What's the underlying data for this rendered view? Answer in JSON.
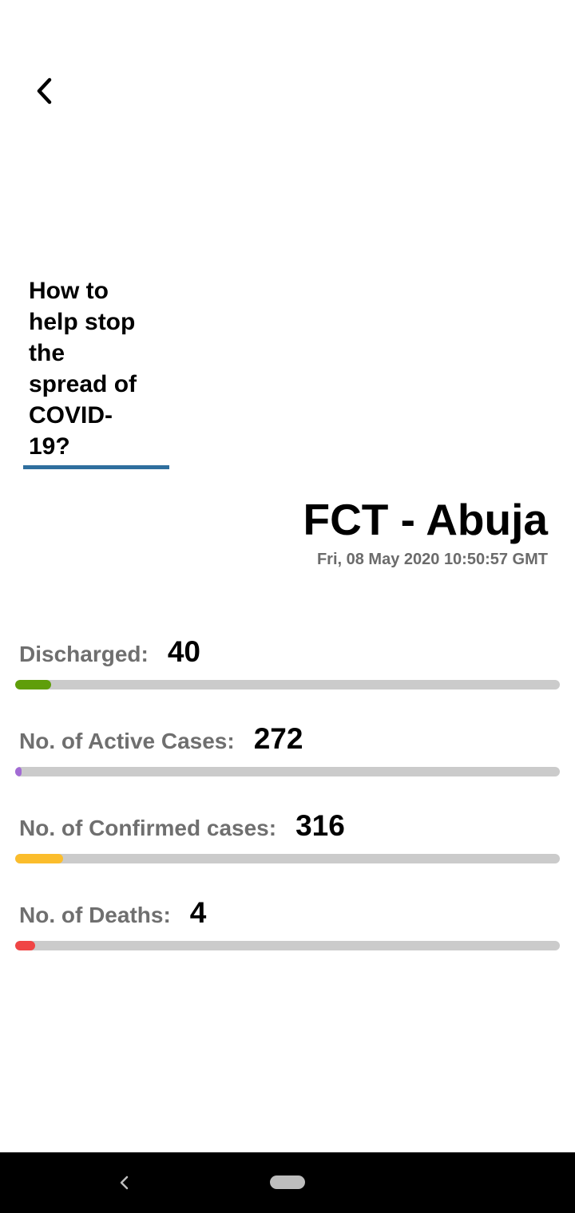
{
  "header": {
    "back_icon": "chevron-left-icon"
  },
  "help_link": {
    "label": "How to help stop the spread of COVID-19?",
    "underline_color": "#2f6f9e"
  },
  "region": {
    "title": "FCT - Abuja",
    "timestamp": "Fri, 08 May 2020 10:50:57 GMT"
  },
  "stats": [
    {
      "label": "Discharged:",
      "value": "40",
      "color": "#5f9e0a",
      "progress": 0.066
    },
    {
      "label": "No. of Active Cases:",
      "value": "272",
      "color": "#a26bd4",
      "progress": 0.011
    },
    {
      "label": "No. of Confirmed cases:",
      "value": "316",
      "color": "#fbbd2c",
      "progress": 0.088
    },
    {
      "label": "No. of Deaths:",
      "value": "4",
      "color": "#f04545",
      "progress": 0.037
    }
  ],
  "system_nav": {
    "back_icon": "triangle-back-icon",
    "home_icon": "home-pill-icon"
  }
}
